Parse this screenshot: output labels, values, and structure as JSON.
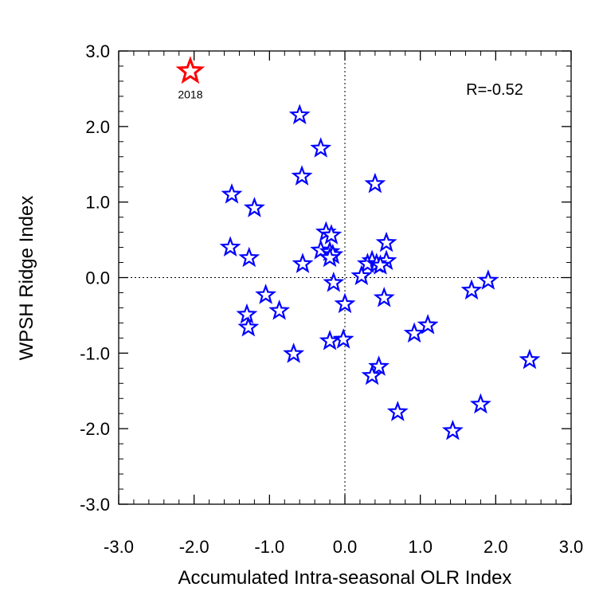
{
  "chart_data": {
    "type": "scatter",
    "xlabel": "Accumulated Intra-seasonal OLR Index",
    "ylabel": "WPSH Ridge Index",
    "xlim": [
      -3.0,
      3.0
    ],
    "ylim": [
      -3.0,
      3.0
    ],
    "x_ticks": [
      "-3.0",
      "-2.0",
      "-1.0",
      "0.0",
      "1.0",
      "2.0",
      "3.0"
    ],
    "y_ticks": [
      "-3.0",
      "-2.0",
      "-1.0",
      "0.0",
      "1.0",
      "2.0",
      "3.0"
    ],
    "grid": false,
    "zero_lines": true,
    "annotation": "R=-0.52",
    "highlight": {
      "label": "2018",
      "x": -2.05,
      "y": 2.73,
      "color": "#ff0000"
    },
    "series_color": "#0000ff",
    "points": [
      {
        "x": -0.6,
        "y": 2.15
      },
      {
        "x": -0.32,
        "y": 1.71
      },
      {
        "x": -0.57,
        "y": 1.34
      },
      {
        "x": 0.4,
        "y": 1.24
      },
      {
        "x": -1.5,
        "y": 1.1
      },
      {
        "x": -1.2,
        "y": 0.92
      },
      {
        "x": -0.25,
        "y": 0.6
      },
      {
        "x": -0.18,
        "y": 0.56
      },
      {
        "x": 0.55,
        "y": 0.46
      },
      {
        "x": -1.52,
        "y": 0.4
      },
      {
        "x": -0.32,
        "y": 0.36
      },
      {
        "x": -0.2,
        "y": 0.34
      },
      {
        "x": -0.16,
        "y": 0.3
      },
      {
        "x": -1.27,
        "y": 0.26
      },
      {
        "x": -0.2,
        "y": 0.26
      },
      {
        "x": 0.36,
        "y": 0.22
      },
      {
        "x": 0.55,
        "y": 0.22
      },
      {
        "x": -0.56,
        "y": 0.18
      },
      {
        "x": 0.3,
        "y": 0.18
      },
      {
        "x": 0.42,
        "y": 0.18
      },
      {
        "x": 0.47,
        "y": 0.16
      },
      {
        "x": 0.22,
        "y": 0.02
      },
      {
        "x": 1.9,
        "y": -0.04
      },
      {
        "x": -0.15,
        "y": -0.07
      },
      {
        "x": 1.68,
        "y": -0.17
      },
      {
        "x": -1.05,
        "y": -0.23
      },
      {
        "x": 0.52,
        "y": -0.27
      },
      {
        "x": 0.0,
        "y": -0.35
      },
      {
        "x": -0.87,
        "y": -0.44
      },
      {
        "x": -1.3,
        "y": -0.49
      },
      {
        "x": 1.1,
        "y": -0.63
      },
      {
        "x": -1.28,
        "y": -0.66
      },
      {
        "x": 0.92,
        "y": -0.74
      },
      {
        "x": -0.02,
        "y": -0.82
      },
      {
        "x": -0.2,
        "y": -0.84
      },
      {
        "x": -0.68,
        "y": -1.01
      },
      {
        "x": 2.45,
        "y": -1.09
      },
      {
        "x": 0.45,
        "y": -1.18
      },
      {
        "x": 0.36,
        "y": -1.3
      },
      {
        "x": 1.8,
        "y": -1.68
      },
      {
        "x": 0.7,
        "y": -1.78
      },
      {
        "x": 1.43,
        "y": -2.03
      }
    ]
  }
}
